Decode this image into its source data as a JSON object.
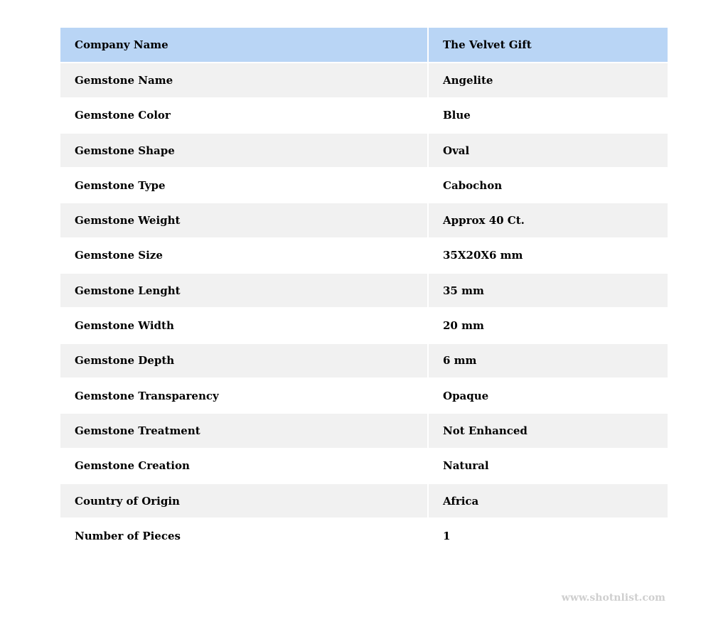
{
  "table": {
    "header": {
      "label": "Company Name",
      "value": "The Velvet Gift"
    },
    "rows": [
      {
        "label": "Gemstone Name",
        "value": "Angelite"
      },
      {
        "label": "Gemstone Color",
        "value": "Blue"
      },
      {
        "label": "Gemstone Shape",
        "value": "Oval"
      },
      {
        "label": "Gemstone Type",
        "value": "Cabochon"
      },
      {
        "label": "Gemstone Weight",
        "value": "Approx 40 Ct."
      },
      {
        "label": "Gemstone Size",
        "value": "35X20X6 mm"
      },
      {
        "label": "Gemstone Lenght",
        "value": "35 mm"
      },
      {
        "label": "Gemstone Width",
        "value": "20 mm"
      },
      {
        "label": "Gemstone Depth",
        "value": "6 mm"
      },
      {
        "label": "Gemstone Transparency",
        "value": "Opaque"
      },
      {
        "label": "Gemstone Treatment",
        "value": "Not Enhanced"
      },
      {
        "label": "Gemstone Creation",
        "value": "Natural"
      },
      {
        "label": "Country of Origin",
        "value": "Africa"
      },
      {
        "label": "Number of Pieces",
        "value": "1"
      }
    ]
  },
  "watermark": "www.shotnlist.com",
  "colors": {
    "header_bg": "#b9d5f5",
    "stripe_bg": "#f1f1f1"
  }
}
